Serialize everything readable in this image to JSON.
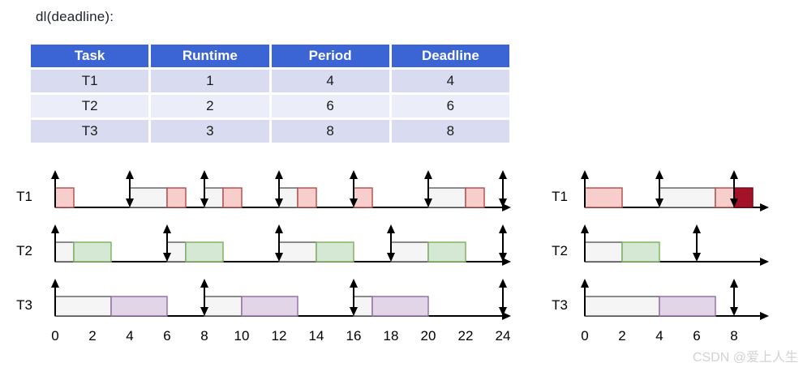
{
  "page": {
    "title": "dl(deadline):",
    "watermark": "CSDN @爱上人生"
  },
  "colors": {
    "table_header_bg": "#3b64d5",
    "table_header_text": "#ffffff",
    "table_row_odd": "#d9dcf0",
    "table_row_even": "#ebedf9",
    "axis": "#000000",
    "task_fills": {
      "t1": "#f8cecc",
      "t2": "#d5e8d4",
      "t3": "#e1d5e7"
    },
    "task_strokes": {
      "t1": "#b85450",
      "t2": "#82b366",
      "t3": "#9673a6"
    },
    "wait_fill": "#f5f5f5",
    "wait_stroke": "#666666",
    "miss_fill": "#a31229",
    "miss_stroke": "#7a0d1f"
  },
  "table": {
    "headers": [
      "Task",
      "Runtime",
      "Period",
      "Deadline"
    ],
    "rows": [
      [
        "T1",
        "1",
        "4",
        "4"
      ],
      [
        "T2",
        "2",
        "6",
        "6"
      ],
      [
        "T3",
        "3",
        "8",
        "8"
      ]
    ]
  },
  "left_timeline": {
    "tick_values": [
      0,
      2,
      4,
      6,
      8,
      10,
      12,
      14,
      16,
      18,
      20,
      22,
      24
    ],
    "rows": [
      {
        "label": "T1",
        "color": "t1",
        "release_arrows": [
          4,
          8,
          12,
          16,
          20,
          24
        ],
        "boxes": [
          {
            "t0": 0,
            "t1": 1,
            "kind": "run"
          },
          {
            "t0": 4,
            "t1": 6,
            "kind": "wait"
          },
          {
            "t0": 6,
            "t1": 7,
            "kind": "run"
          },
          {
            "t0": 8,
            "t1": 9,
            "kind": "wait"
          },
          {
            "t0": 9,
            "t1": 10,
            "kind": "run"
          },
          {
            "t0": 12,
            "t1": 13,
            "kind": "wait"
          },
          {
            "t0": 13,
            "t1": 14,
            "kind": "run"
          },
          {
            "t0": 16,
            "t1": 17,
            "kind": "run"
          },
          {
            "t0": 20,
            "t1": 22,
            "kind": "wait"
          },
          {
            "t0": 22,
            "t1": 23,
            "kind": "run"
          }
        ]
      },
      {
        "label": "T2",
        "color": "t2",
        "release_arrows": [
          6,
          12,
          18,
          24
        ],
        "boxes": [
          {
            "t0": 0,
            "t1": 1,
            "kind": "wait"
          },
          {
            "t0": 1,
            "t1": 3,
            "kind": "run"
          },
          {
            "t0": 6,
            "t1": 7,
            "kind": "wait"
          },
          {
            "t0": 7,
            "t1": 9,
            "kind": "run"
          },
          {
            "t0": 12,
            "t1": 14,
            "kind": "wait"
          },
          {
            "t0": 14,
            "t1": 16,
            "kind": "run"
          },
          {
            "t0": 18,
            "t1": 20,
            "kind": "wait"
          },
          {
            "t0": 20,
            "t1": 22,
            "kind": "run"
          }
        ]
      },
      {
        "label": "T3",
        "color": "t3",
        "release_arrows": [
          8,
          16,
          24
        ],
        "boxes": [
          {
            "t0": 0,
            "t1": 3,
            "kind": "wait"
          },
          {
            "t0": 3,
            "t1": 6,
            "kind": "run"
          },
          {
            "t0": 8,
            "t1": 10,
            "kind": "wait"
          },
          {
            "t0": 10,
            "t1": 13,
            "kind": "run"
          },
          {
            "t0": 16,
            "t1": 17,
            "kind": "wait"
          },
          {
            "t0": 17,
            "t1": 20,
            "kind": "run"
          }
        ]
      }
    ]
  },
  "right_timeline": {
    "tick_values": [
      0,
      2,
      4,
      6,
      8
    ],
    "rows": [
      {
        "label": "T1",
        "color": "t1",
        "release_arrows": [
          4,
          8
        ],
        "boxes": [
          {
            "t0": 0,
            "t1": 2,
            "kind": "run"
          },
          {
            "t0": 4,
            "t1": 7,
            "kind": "wait"
          },
          {
            "t0": 7,
            "t1": 8,
            "kind": "run"
          },
          {
            "t0": 8,
            "t1": 9,
            "kind": "miss"
          }
        ]
      },
      {
        "label": "T2",
        "color": "t2",
        "release_arrows": [
          6
        ],
        "boxes": [
          {
            "t0": 0,
            "t1": 2,
            "kind": "wait"
          },
          {
            "t0": 2,
            "t1": 4,
            "kind": "run"
          }
        ]
      },
      {
        "label": "T3",
        "color": "t3",
        "release_arrows": [
          8
        ],
        "boxes": [
          {
            "t0": 0,
            "t1": 4,
            "kind": "wait"
          },
          {
            "t0": 4,
            "t1": 7,
            "kind": "run"
          }
        ]
      }
    ]
  }
}
